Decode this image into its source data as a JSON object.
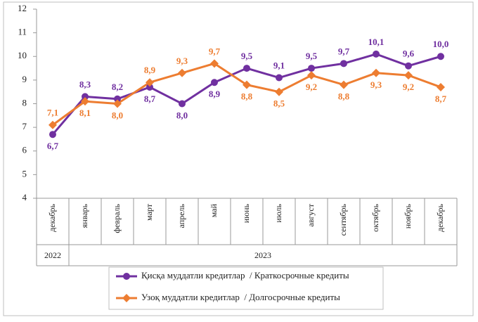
{
  "chart_data": {
    "type": "line",
    "categories": [
      "декабрь",
      "январь",
      "февраль",
      "март",
      "апрель",
      "май",
      "июнь",
      "июль",
      "август",
      "сентябрь",
      "октябрь",
      "ноябрь",
      "декабрь"
    ],
    "category_groups": [
      {
        "label": "2022",
        "span": 1
      },
      {
        "label": "2023",
        "span": 12
      }
    ],
    "series": [
      {
        "name": "Қисқа муддатли кредитлар  / Краткосрочные кредиты",
        "color": "#7030a0",
        "marker": "circle",
        "values": [
          6.7,
          8.3,
          8.2,
          8.7,
          8.0,
          8.9,
          9.5,
          9.1,
          9.5,
          9.7,
          10.1,
          9.6,
          10.0
        ],
        "value_labels": [
          "6,7",
          "8,3",
          "8,2",
          "8,7",
          "8,0",
          "8,9",
          "9,5",
          "9,1",
          "9,5",
          "9,7",
          "10,1",
          "9,6",
          "10,0"
        ]
      },
      {
        "name": "Узоқ муддатли кредитлар  / Долгосрочные кредиты",
        "color": "#ed7d31",
        "marker": "diamond",
        "values": [
          7.1,
          8.1,
          8.0,
          8.9,
          9.3,
          9.7,
          8.8,
          8.5,
          9.2,
          8.8,
          9.3,
          9.2,
          8.7
        ],
        "value_labels": [
          "7,1",
          "8,1",
          "8,0",
          "8,9",
          "9,3",
          "9,7",
          "8,8",
          "8,5",
          "9,2",
          "8,8",
          "9,3",
          "9,2",
          "8,7"
        ]
      }
    ],
    "ylim": [
      4,
      12
    ],
    "yticks": [
      4,
      5,
      6,
      7,
      8,
      9,
      10,
      11,
      12
    ],
    "grid": false,
    "legend": "bottom"
  }
}
